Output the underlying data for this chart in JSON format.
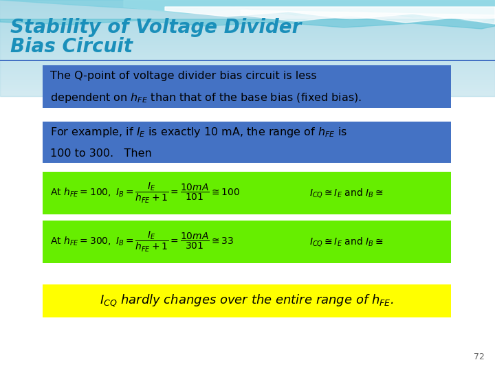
{
  "title_line1": "Stability of Voltage Divider",
  "title_line2": "Bias Circuit",
  "title_color": "#1a8fba",
  "box1_color": "#4472c4",
  "box2_color": "#4472c4",
  "box3_color": "#66ee00",
  "box4_color": "#66ee00",
  "box5_color": "#ffff00",
  "bg_top_color": "#b0dde8",
  "bg_bottom_color": "#ffffff",
  "page_number": "72"
}
